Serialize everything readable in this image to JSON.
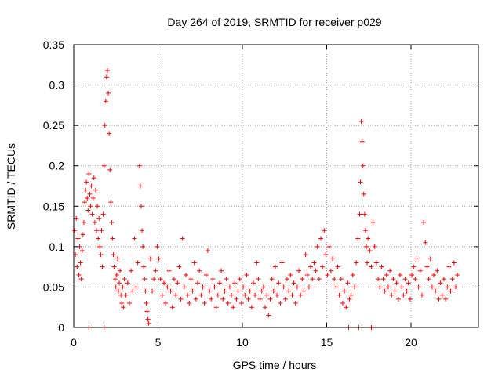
{
  "chart_data": {
    "type": "scatter",
    "title": "Day 264 of 2019, SRMTID for receiver p029",
    "xlabel": "GPS time / hours",
    "ylabel": "SRMTID / TECUs",
    "xlim": [
      0,
      24
    ],
    "ylim": [
      0,
      0.35
    ],
    "grid": true,
    "marker": "+",
    "colors": {
      "series": "#ff0000",
      "grid": "#a0a0a0",
      "axis": "#000000"
    },
    "x_ticks": [
      0,
      5,
      10,
      15,
      20
    ],
    "x_tick_labels": [
      "0",
      "5",
      "10",
      "15",
      "20"
    ],
    "y_ticks": [
      0,
      0.05,
      0.1,
      0.15,
      0.2,
      0.25,
      0.3,
      0.35
    ],
    "y_tick_labels": [
      "0",
      "0.05",
      "0.1",
      "0.15",
      "0.2",
      "0.25",
      "0.3",
      "0.35"
    ],
    "series": [
      {
        "name": "SRMTID",
        "points": [
          [
            0.05,
            0.12
          ],
          [
            0.1,
            0.09
          ],
          [
            0.15,
            0.135
          ],
          [
            0.2,
            0.075
          ],
          [
            0.25,
            0.11
          ],
          [
            0.3,
            0.065
          ],
          [
            0.35,
            0.1
          ],
          [
            0.4,
            0.08
          ],
          [
            0.45,
            0.06
          ],
          [
            0.5,
            0.095
          ],
          [
            0.55,
            0.115
          ],
          [
            0.6,
            0.13
          ],
          [
            0.65,
            0.155
          ],
          [
            0.7,
            0.17
          ],
          [
            0.75,
            0.18
          ],
          [
            0.8,
            0.16
          ],
          [
            0.85,
            0.145
          ],
          [
            0.9,
            0.19
          ],
          [
            0.95,
            0.165
          ],
          [
            1.0,
            0.15
          ],
          [
            1.05,
            0.175
          ],
          [
            1.1,
            0.14
          ],
          [
            1.15,
            0.16
          ],
          [
            1.2,
            0.185
          ],
          [
            1.25,
            0.13
          ],
          [
            1.3,
            0.17
          ],
          [
            1.35,
            0.12
          ],
          [
            1.4,
            0.15
          ],
          [
            1.45,
            0.11
          ],
          [
            1.5,
            0.135
          ],
          [
            1.55,
            0.1
          ],
          [
            1.6,
            0.09
          ],
          [
            1.65,
            0.12
          ],
          [
            1.7,
            0.075
          ],
          [
            1.75,
            0.14
          ],
          [
            1.8,
            0.2
          ],
          [
            1.85,
            0.25
          ],
          [
            1.9,
            0.28
          ],
          [
            1.95,
            0.31
          ],
          [
            2.0,
            0.318
          ],
          [
            2.05,
            0.29
          ],
          [
            2.1,
            0.24
          ],
          [
            2.15,
            0.195
          ],
          [
            2.2,
            0.155
          ],
          [
            2.25,
            0.13
          ],
          [
            2.3,
            0.11
          ],
          [
            2.35,
            0.09
          ],
          [
            2.4,
            0.075
          ],
          [
            2.45,
            0.06
          ],
          [
            2.5,
            0.05
          ],
          [
            2.55,
            0.065
          ],
          [
            2.6,
            0.085
          ],
          [
            2.65,
            0.045
          ],
          [
            2.7,
            0.055
          ],
          [
            2.75,
            0.07
          ],
          [
            2.8,
            0.04
          ],
          [
            2.85,
            0.03
          ],
          [
            2.9,
            0.05
          ],
          [
            2.95,
            0.025
          ],
          [
            3.0,
            0.06
          ],
          [
            3.1,
            0.04
          ],
          [
            3.2,
            0.055
          ],
          [
            3.3,
            0.03
          ],
          [
            3.4,
            0.07
          ],
          [
            3.5,
            0.045
          ],
          [
            3.6,
            0.11
          ],
          [
            3.7,
            0.05
          ],
          [
            3.8,
            0.08
          ],
          [
            3.9,
            0.2
          ],
          [
            3.95,
            0.175
          ],
          [
            4.0,
            0.15
          ],
          [
            4.05,
            0.12
          ],
          [
            4.1,
            0.1
          ],
          [
            4.15,
            0.075
          ],
          [
            4.2,
            0.06
          ],
          [
            4.25,
            0.045
          ],
          [
            4.3,
            0.03
          ],
          [
            4.35,
            0.02
          ],
          [
            4.4,
            0.01
          ],
          [
            4.45,
            0.005
          ],
          [
            4.55,
            0.085
          ],
          [
            4.65,
            0.045
          ],
          [
            4.75,
            0.06
          ],
          [
            4.85,
            0.07
          ],
          [
            4.95,
            0.1
          ],
          [
            5.05,
            0.085
          ],
          [
            5.15,
            0.06
          ],
          [
            5.25,
            0.04
          ],
          [
            5.35,
            0.055
          ],
          [
            5.45,
            0.03
          ],
          [
            5.55,
            0.05
          ],
          [
            5.65,
            0.07
          ],
          [
            5.75,
            0.045
          ],
          [
            5.85,
            0.025
          ],
          [
            5.95,
            0.06
          ],
          [
            6.05,
            0.04
          ],
          [
            6.15,
            0.055
          ],
          [
            6.25,
            0.075
          ],
          [
            6.35,
            0.035
          ],
          [
            6.45,
            0.11
          ],
          [
            6.55,
            0.05
          ],
          [
            6.65,
            0.065
          ],
          [
            6.75,
            0.04
          ],
          [
            6.85,
            0.03
          ],
          [
            6.95,
            0.06
          ],
          [
            7.05,
            0.045
          ],
          [
            7.15,
            0.08
          ],
          [
            7.25,
            0.035
          ],
          [
            7.35,
            0.055
          ],
          [
            7.45,
            0.07
          ],
          [
            7.55,
            0.04
          ],
          [
            7.65,
            0.05
          ],
          [
            7.75,
            0.03
          ],
          [
            7.85,
            0.065
          ],
          [
            7.95,
            0.095
          ],
          [
            8.05,
            0.045
          ],
          [
            8.15,
            0.035
          ],
          [
            8.25,
            0.06
          ],
          [
            8.35,
            0.05
          ],
          [
            8.45,
            0.025
          ],
          [
            8.55,
            0.04
          ],
          [
            8.65,
            0.055
          ],
          [
            8.75,
            0.07
          ],
          [
            8.85,
            0.035
          ],
          [
            8.95,
            0.045
          ],
          [
            9.05,
            0.06
          ],
          [
            9.15,
            0.03
          ],
          [
            9.25,
            0.05
          ],
          [
            9.35,
            0.04
          ],
          [
            9.45,
            0.025
          ],
          [
            9.55,
            0.055
          ],
          [
            9.65,
            0.035
          ],
          [
            9.75,
            0.045
          ],
          [
            9.85,
            0.06
          ],
          [
            9.95,
            0.03
          ],
          [
            10.05,
            0.05
          ],
          [
            10.15,
            0.04
          ],
          [
            10.25,
            0.065
          ],
          [
            10.35,
            0.035
          ],
          [
            10.45,
            0.045
          ],
          [
            10.55,
            0.025
          ],
          [
            10.65,
            0.055
          ],
          [
            10.75,
            0.04
          ],
          [
            10.85,
            0.08
          ],
          [
            10.95,
            0.06
          ],
          [
            11.05,
            0.035
          ],
          [
            11.15,
            0.045
          ],
          [
            11.25,
            0.05
          ],
          [
            11.35,
            0.025
          ],
          [
            11.45,
            0.04
          ],
          [
            11.55,
            0.015
          ],
          [
            11.65,
            0.035
          ],
          [
            11.75,
            0.06
          ],
          [
            11.85,
            0.045
          ],
          [
            11.95,
            0.075
          ],
          [
            12.05,
            0.04
          ],
          [
            12.15,
            0.055
          ],
          [
            12.25,
            0.03
          ],
          [
            12.35,
            0.08
          ],
          [
            12.45,
            0.05
          ],
          [
            12.55,
            0.035
          ],
          [
            12.65,
            0.06
          ],
          [
            12.75,
            0.045
          ],
          [
            12.85,
            0.065
          ],
          [
            12.95,
            0.04
          ],
          [
            13.05,
            0.055
          ],
          [
            13.15,
            0.03
          ],
          [
            13.25,
            0.05
          ],
          [
            13.35,
            0.07
          ],
          [
            13.45,
            0.04
          ],
          [
            13.55,
            0.06
          ],
          [
            13.65,
            0.045
          ],
          [
            13.75,
            0.09
          ],
          [
            13.85,
            0.065
          ],
          [
            13.95,
            0.05
          ],
          [
            14.05,
            0.075
          ],
          [
            14.15,
            0.06
          ],
          [
            14.25,
            0.08
          ],
          [
            14.35,
            0.07
          ],
          [
            14.45,
            0.1
          ],
          [
            14.55,
            0.06
          ],
          [
            14.65,
            0.11
          ],
          [
            14.75,
            0.075
          ],
          [
            14.85,
            0.12
          ],
          [
            14.95,
            0.09
          ],
          [
            15.05,
            0.065
          ],
          [
            15.15,
            0.1
          ],
          [
            15.25,
            0.07
          ],
          [
            15.35,
            0.085
          ],
          [
            15.45,
            0.06
          ],
          [
            15.55,
            0.05
          ],
          [
            15.65,
            0.075
          ],
          [
            15.75,
            0.04
          ],
          [
            15.85,
            0.06
          ],
          [
            15.95,
            0.03
          ],
          [
            16.05,
            0.045
          ],
          [
            16.15,
            0.025
          ],
          [
            16.25,
            0.055
          ],
          [
            16.35,
            0.035
          ],
          [
            16.45,
            0.04
          ],
          [
            16.55,
            0.065
          ],
          [
            16.65,
            0.05
          ],
          [
            16.75,
            0.08
          ],
          [
            16.85,
            0.11
          ],
          [
            16.95,
            0.14
          ],
          [
            17.0,
            0.18
          ],
          [
            17.05,
            0.255
          ],
          [
            17.1,
            0.23
          ],
          [
            17.15,
            0.2
          ],
          [
            17.2,
            0.165
          ],
          [
            17.25,
            0.14
          ],
          [
            17.3,
            0.12
          ],
          [
            17.35,
            0.1
          ],
          [
            17.4,
            0.08
          ],
          [
            17.45,
            0.11
          ],
          [
            17.55,
            0.095
          ],
          [
            17.65,
            0.075
          ],
          [
            17.75,
            0.13
          ],
          [
            17.85,
            0.1
          ],
          [
            17.95,
            0.08
          ],
          [
            18.05,
            0.06
          ],
          [
            18.15,
            0.05
          ],
          [
            18.25,
            0.075
          ],
          [
            18.35,
            0.06
          ],
          [
            18.45,
            0.045
          ],
          [
            18.55,
            0.065
          ],
          [
            18.65,
            0.05
          ],
          [
            18.75,
            0.07
          ],
          [
            18.85,
            0.04
          ],
          [
            18.95,
            0.06
          ],
          [
            19.05,
            0.045
          ],
          [
            19.15,
            0.055
          ],
          [
            19.25,
            0.035
          ],
          [
            19.35,
            0.065
          ],
          [
            19.45,
            0.05
          ],
          [
            19.55,
            0.04
          ],
          [
            19.65,
            0.06
          ],
          [
            19.75,
            0.045
          ],
          [
            19.85,
            0.055
          ],
          [
            19.95,
            0.035
          ],
          [
            20.05,
            0.065
          ],
          [
            20.15,
            0.075
          ],
          [
            20.25,
            0.06
          ],
          [
            20.35,
            0.085
          ],
          [
            20.45,
            0.05
          ],
          [
            20.55,
            0.07
          ],
          [
            20.65,
            0.04
          ],
          [
            20.75,
            0.13
          ],
          [
            20.85,
            0.105
          ],
          [
            20.95,
            0.075
          ],
          [
            21.05,
            0.06
          ],
          [
            21.15,
            0.085
          ],
          [
            21.25,
            0.05
          ],
          [
            21.35,
            0.065
          ],
          [
            21.45,
            0.045
          ],
          [
            21.55,
            0.07
          ],
          [
            21.65,
            0.035
          ],
          [
            21.75,
            0.055
          ],
          [
            21.85,
            0.04
          ],
          [
            21.95,
            0.06
          ],
          [
            22.05,
            0.035
          ],
          [
            22.15,
            0.05
          ],
          [
            22.25,
            0.075
          ],
          [
            22.35,
            0.045
          ],
          [
            22.45,
            0.06
          ],
          [
            22.55,
            0.08
          ],
          [
            22.65,
            0.05
          ],
          [
            22.75,
            0.065
          ],
          [
            0.9,
            0.0
          ],
          [
            1.8,
            0.0
          ],
          [
            16.3,
            0.0
          ],
          [
            16.9,
            0.0
          ],
          [
            17.65,
            0.0
          ],
          [
            17.75,
            0.0
          ]
        ]
      }
    ]
  }
}
